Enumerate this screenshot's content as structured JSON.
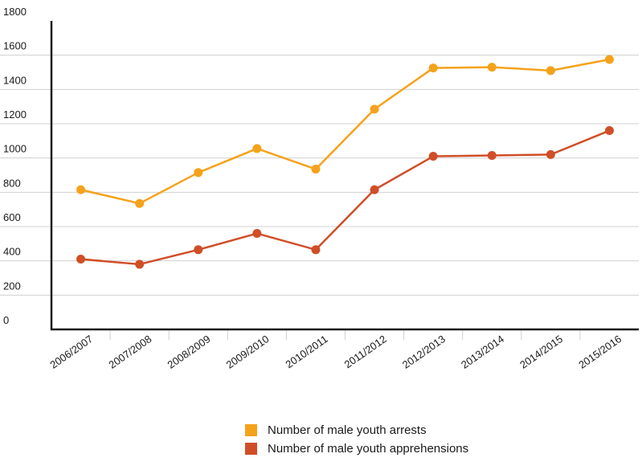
{
  "chart_data": {
    "type": "line",
    "categories": [
      "2006/2007",
      "2007/2008",
      "2008/2009",
      "2009/2010",
      "2010/2011",
      "2011/2012",
      "2012/2013",
      "2013/2014",
      "2014/2015",
      "2015/2016"
    ],
    "y_ticks": [
      "0",
      "200",
      "400",
      "600",
      "800",
      "1000",
      "1200",
      "1400",
      "1600",
      "1800"
    ],
    "ylim": [
      0,
      1800
    ],
    "grid": true,
    "legend_position": "bottom",
    "series": [
      {
        "name": "Number of male youth arrests",
        "color": "#f5a21b",
        "values": [
          815,
          735,
          915,
          1055,
          935,
          1285,
          1525,
          1530,
          1510,
          1575
        ]
      },
      {
        "name": "Number of male youth apprehensions",
        "color": "#d04e27",
        "values": [
          410,
          380,
          465,
          560,
          465,
          815,
          1010,
          1015,
          1020,
          1160
        ]
      }
    ]
  }
}
